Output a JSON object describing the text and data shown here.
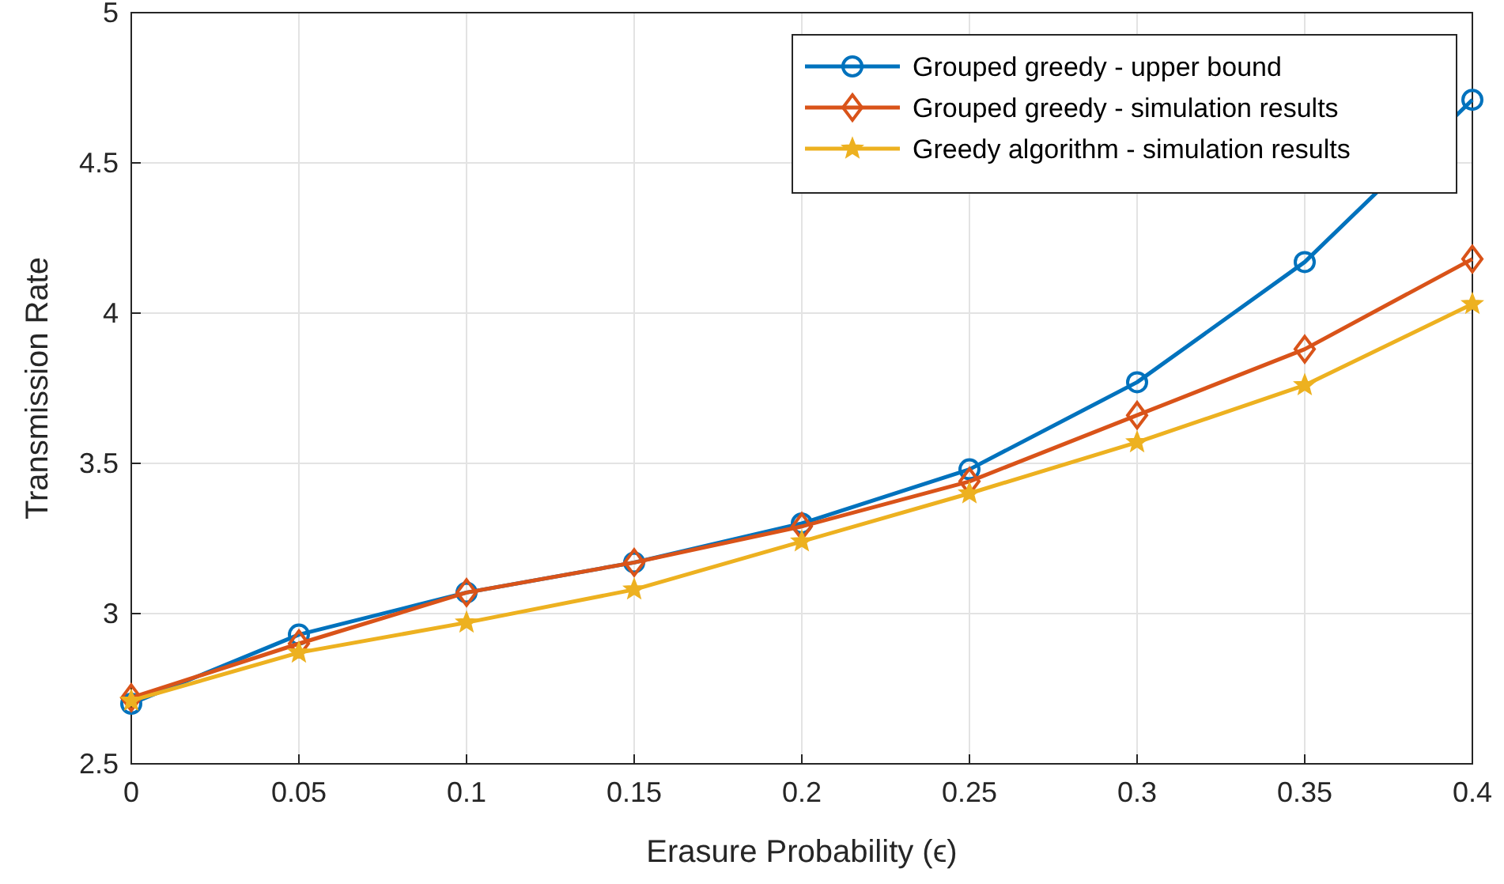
{
  "chart_data": {
    "type": "line",
    "xlabel": "Erasure Probability (ϵ)",
    "ylabel": "Transmission Rate",
    "x": [
      0,
      0.05,
      0.1,
      0.15,
      0.2,
      0.25,
      0.3,
      0.35,
      0.4
    ],
    "xlim": [
      0,
      0.4
    ],
    "xticks": [
      0,
      0.05,
      0.1,
      0.15,
      0.2,
      0.25,
      0.3,
      0.35,
      0.4
    ],
    "ylim": [
      2.5,
      5
    ],
    "yticks": [
      2.5,
      3,
      3.5,
      4,
      4.5,
      5
    ],
    "grid": true,
    "legend": "top right",
    "line_style": "solid",
    "series": [
      {
        "name": "Grouped greedy - upper bound",
        "color": "#0072bd",
        "marker": "circle",
        "values": [
          2.7,
          2.93,
          3.07,
          3.17,
          3.3,
          3.48,
          3.77,
          4.17,
          4.71
        ]
      },
      {
        "name": "Grouped greedy - simulation results",
        "color": "#d95319",
        "marker": "diamond",
        "values": [
          2.72,
          2.9,
          3.07,
          3.17,
          3.29,
          3.44,
          3.66,
          3.88,
          4.18
        ]
      },
      {
        "name": "Greedy algorithm - simulation results",
        "color": "#edb120",
        "marker": "star",
        "values": [
          2.71,
          2.87,
          2.97,
          3.08,
          3.24,
          3.4,
          3.57,
          3.76,
          4.03
        ]
      }
    ]
  }
}
